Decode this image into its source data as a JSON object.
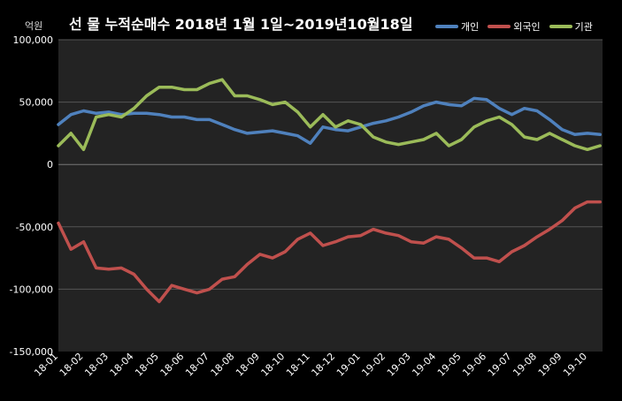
{
  "chart_data": {
    "type": "line",
    "title": "선 물 누적순매수 2018년 1월 1일~2019년10월18일",
    "unit_label": "억원",
    "ylim": [
      -150000,
      100000
    ],
    "yticks": [
      100000,
      50000,
      0,
      -50000,
      -100000,
      -150000
    ],
    "ytick_labels": [
      "100,000",
      "50,000",
      "0",
      "-50,000",
      "-100,000",
      "-150,000"
    ],
    "xlim": [
      0,
      21.6
    ],
    "xtick_labels": [
      "18-01",
      "18-02",
      "18-03",
      "18-04",
      "18-05",
      "18-06",
      "18-07",
      "18-08",
      "18-09",
      "18-10",
      "18-11",
      "18-12",
      "19-01",
      "19-02",
      "19-03",
      "19-04",
      "19-05",
      "19-06",
      "19-07",
      "19-08",
      "19-09",
      "19-10"
    ],
    "grid": true,
    "legend": "top-right",
    "colors": {
      "개인": "#4f81bd",
      "외국인": "#c0504d",
      "기관": "#9bbb59"
    },
    "series": [
      {
        "name": "개인",
        "color": "#4f81bd",
        "x": [
          0,
          0.5,
          1,
          1.5,
          2,
          2.5,
          3,
          3.5,
          4,
          4.5,
          5,
          5.5,
          6,
          6.5,
          7,
          7.5,
          8,
          8.5,
          9,
          9.5,
          10,
          10.5,
          11,
          11.5,
          12,
          12.5,
          13,
          13.5,
          14,
          14.5,
          15,
          15.5,
          16,
          16.5,
          17,
          17.5,
          18,
          18.5,
          19,
          19.5,
          20,
          20.5,
          21,
          21.5
        ],
        "values": [
          32000,
          40000,
          43000,
          41000,
          42000,
          40000,
          41000,
          41000,
          40000,
          38000,
          38000,
          36000,
          36000,
          32000,
          28000,
          25000,
          26000,
          27000,
          25000,
          23000,
          17000,
          30000,
          28000,
          27000,
          30000,
          33000,
          35000,
          38000,
          42000,
          47000,
          50000,
          48000,
          47000,
          53000,
          52000,
          45000,
          40000,
          45000,
          43000,
          36000,
          28000,
          24000,
          25000,
          24000
        ]
      },
      {
        "name": "외국인",
        "color": "#c0504d",
        "x": [
          0,
          0.5,
          1,
          1.5,
          2,
          2.5,
          3,
          3.5,
          4,
          4.5,
          5,
          5.5,
          6,
          6.5,
          7,
          7.5,
          8,
          8.5,
          9,
          9.5,
          10,
          10.5,
          11,
          11.5,
          12,
          12.5,
          13,
          13.5,
          14,
          14.5,
          15,
          15.5,
          16,
          16.5,
          17,
          17.5,
          18,
          18.5,
          19,
          19.5,
          20,
          20.5,
          21,
          21.5
        ],
        "values": [
          -47000,
          -68000,
          -62000,
          -83000,
          -84000,
          -83000,
          -88000,
          -100000,
          -110000,
          -97000,
          -100000,
          -103000,
          -100000,
          -92000,
          -90000,
          -80000,
          -72000,
          -75000,
          -70000,
          -60000,
          -55000,
          -65000,
          -62000,
          -58000,
          -57000,
          -52000,
          -55000,
          -57000,
          -62000,
          -63000,
          -58000,
          -60000,
          -67000,
          -75000,
          -75000,
          -78000,
          -70000,
          -65000,
          -58000,
          -52000,
          -45000,
          -35000,
          -30000,
          -30000
        ]
      },
      {
        "name": "기관",
        "color": "#9bbb59",
        "x": [
          0,
          0.5,
          1,
          1.5,
          2,
          2.5,
          3,
          3.5,
          4,
          4.5,
          5,
          5.5,
          6,
          6.5,
          7,
          7.5,
          8,
          8.5,
          9,
          9.5,
          10,
          10.5,
          11,
          11.5,
          12,
          12.5,
          13,
          13.5,
          14,
          14.5,
          15,
          15.5,
          16,
          16.5,
          17,
          17.5,
          18,
          18.5,
          19,
          19.5,
          20,
          20.5,
          21,
          21.5
        ],
        "values": [
          15000,
          25000,
          12000,
          38000,
          40000,
          38000,
          45000,
          55000,
          62000,
          62000,
          60000,
          60000,
          65000,
          68000,
          55000,
          55000,
          52000,
          48000,
          50000,
          42000,
          30000,
          40000,
          30000,
          35000,
          32000,
          22000,
          18000,
          16000,
          18000,
          20000,
          25000,
          15000,
          20000,
          30000,
          35000,
          38000,
          32000,
          22000,
          20000,
          25000,
          20000,
          15000,
          12000,
          15000
        ]
      }
    ]
  }
}
